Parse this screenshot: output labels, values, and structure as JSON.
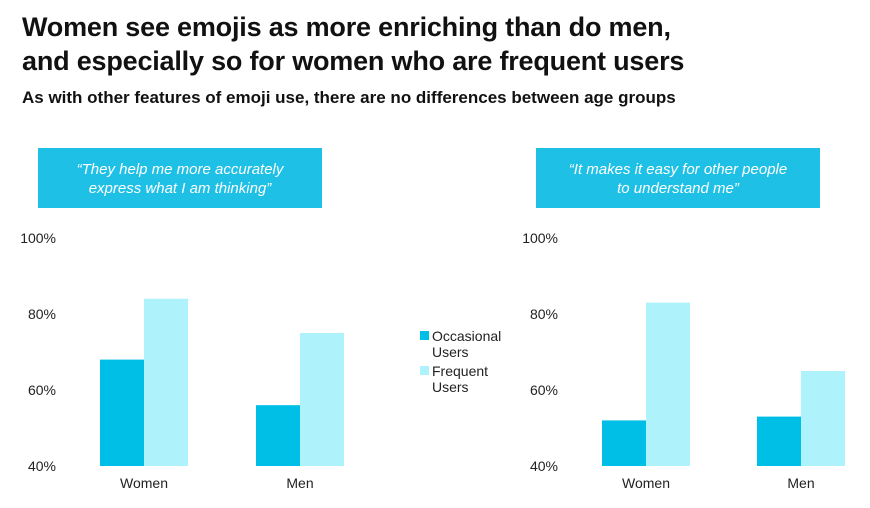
{
  "title": {
    "line1": "Women see emojis as more enriching than do men,",
    "line2": "and especially so for women who are frequent users"
  },
  "subtitle": "As with other features of emoji use, there are no differences between age groups",
  "colors": {
    "occasional": "#00bfe6",
    "frequent": "#aef2fb",
    "quote_bg": "#1ec0e6"
  },
  "legend": {
    "occasional": {
      "line1": "Occasional",
      "line2": "Users"
    },
    "frequent": {
      "line1": "Frequent",
      "line2": "Users"
    }
  },
  "chart_data": [
    {
      "type": "bar",
      "title_line1": "“They help me more accurately",
      "title_line2": "express what I am thinking”",
      "categories": [
        "Women",
        "Men"
      ],
      "series": [
        {
          "name": "Occasional Users",
          "values": [
            68,
            56
          ]
        },
        {
          "name": "Frequent Users",
          "values": [
            84,
            75
          ]
        }
      ],
      "ylim": [
        40,
        100
      ],
      "yticks": [
        "40%",
        "60%",
        "80%",
        "100%"
      ]
    },
    {
      "type": "bar",
      "title_line1": "“It makes it easy for other people",
      "title_line2": "to understand me”",
      "categories": [
        "Women",
        "Men"
      ],
      "series": [
        {
          "name": "Occasional Users",
          "values": [
            52,
            53
          ]
        },
        {
          "name": "Frequent Users",
          "values": [
            83,
            65
          ]
        }
      ],
      "ylim": [
        40,
        100
      ],
      "yticks": [
        "40%",
        "60%",
        "80%",
        "100%"
      ]
    }
  ]
}
